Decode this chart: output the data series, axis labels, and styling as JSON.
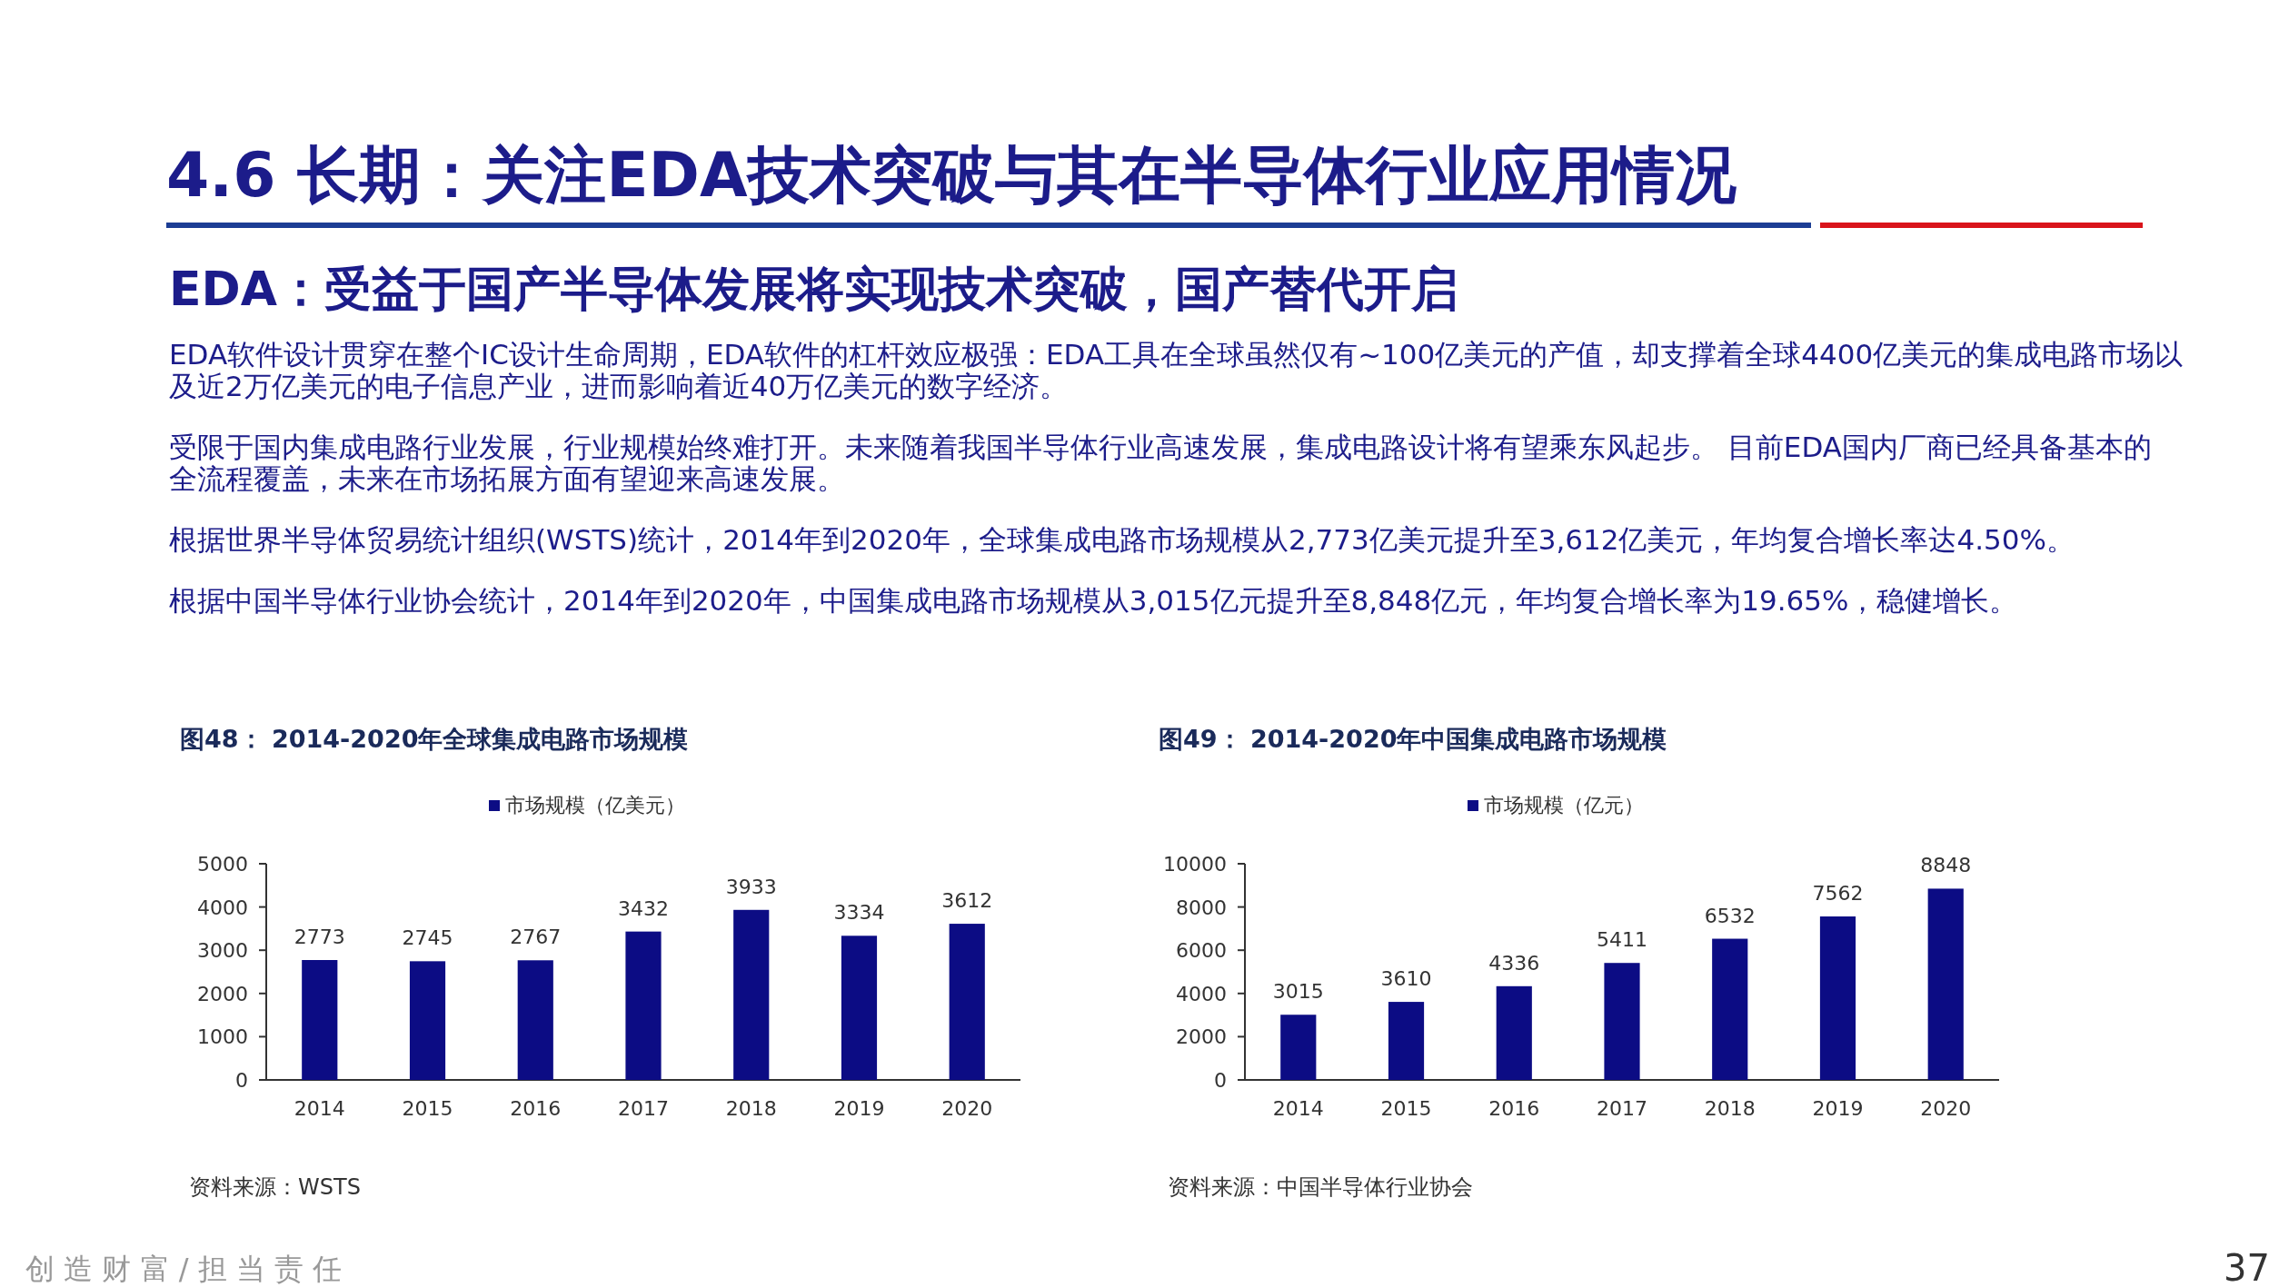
{
  "chart_data": [
    {
      "type": "other",
      "title": "4.6 长期：关注EDA技术突破与其在半导体行业应用情况",
      "subtitle": "EDA：受益于国产半导体发展将实现技术突破，国产替代开启",
      "annotations": [
        "EDA软件设计贯穿在整个IC设计生命周期，EDA软件的杠杆效应极强：EDA工具在全球虽然仅有~100亿美元的产值，却支撑着全球4400亿美元的集成电路市场以及近2万亿美元的电子信息产业，进而影响着近40万亿美元的数字经济。",
        "受限于国内集成电路行业发展，行业规模始终难打开。未来随着我国半导体行业高速发展，集成电路设计将有望乘东风起步。 目前EDA国内厂商已经具备基本的全流程覆盖，未来在市场拓展方面有望迎来高速发展。",
        "根据世界半导体贸易统计组织(WSTS)统计，2014年到2020年，全球集成电路市场规模从2,773亿美元提升至3,612亿美元，年均复合增长率达4.50%。",
        "根据中国半导体行业协会统计，2014年到2020年，中国集成电路市场规模从3,015亿元提升至8,848亿元，年均复合增长率为19.65%，稳健增长。",
        "创 造 财 富 / 担 当 责 任",
        "37"
      ]
    },
    {
      "type": "bar",
      "title": "图48： 2014-2020年全球集成电路市场规模",
      "categories": [
        "2014",
        "2015",
        "2016",
        "2017",
        "2018",
        "2019",
        "2020"
      ],
      "series": [
        {
          "name": "市场规模（亿美元）",
          "color": "#0c0c84",
          "values": [
            2773,
            2745,
            2767,
            3432,
            3933,
            3334,
            3612
          ]
        }
      ],
      "ylim": [
        0,
        5000
      ],
      "yticks": [
        0,
        1000,
        2000,
        3000,
        4000,
        5000
      ],
      "data_labels": true,
      "legend": "top",
      "annotations": [
        "资料来源：WSTS"
      ]
    },
    {
      "type": "bar",
      "title": "图49： 2014-2020年中国集成电路市场规模",
      "categories": [
        "2014",
        "2015",
        "2016",
        "2017",
        "2018",
        "2019",
        "2020"
      ],
      "series": [
        {
          "name": "市场规模（亿元）",
          "color": "#0c0c84",
          "values": [
            3015,
            3610,
            4336,
            5411,
            6532,
            7562,
            8848
          ]
        }
      ],
      "ylim": [
        0,
        10000
      ],
      "yticks": [
        0,
        2000,
        4000,
        6000,
        8000,
        10000
      ],
      "data_labels": true,
      "legend": "top",
      "annotations": [
        "资料来源：中国半导体行业协会"
      ]
    }
  ]
}
